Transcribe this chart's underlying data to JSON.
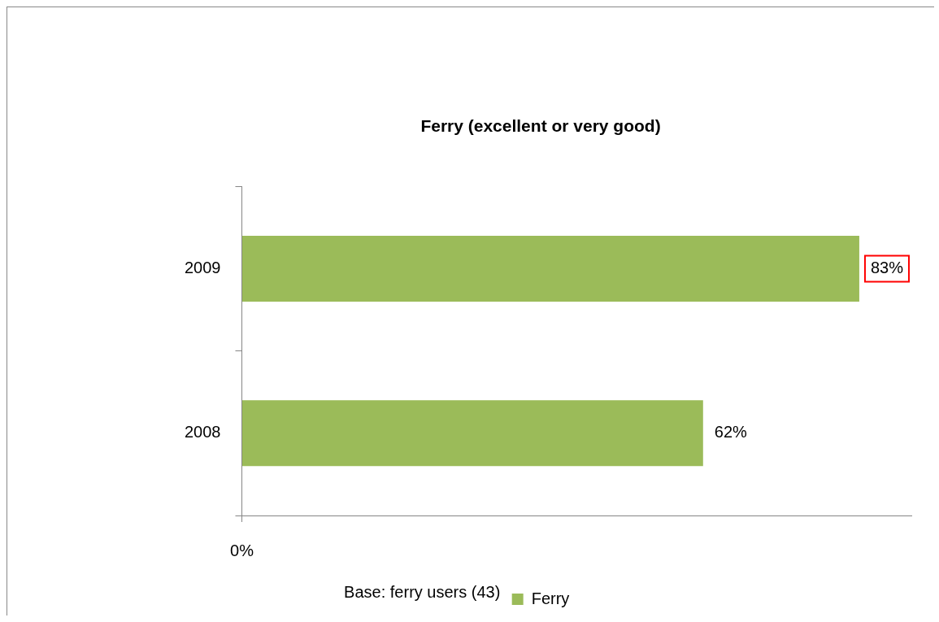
{
  "chart_data": {
    "type": "bar",
    "orientation": "horizontal",
    "title": "Ferry (excellent or very good)",
    "categories": [
      "2009",
      "2008"
    ],
    "series": [
      {
        "name": "Ferry",
        "color": "#9bbb59",
        "values": [
          83,
          62
        ],
        "value_labels": [
          "83%",
          "62%"
        ]
      }
    ],
    "grid": false,
    "legend": "bottom",
    "annotations": [
      "0%",
      "Base: ferry users (43)"
    ]
  }
}
